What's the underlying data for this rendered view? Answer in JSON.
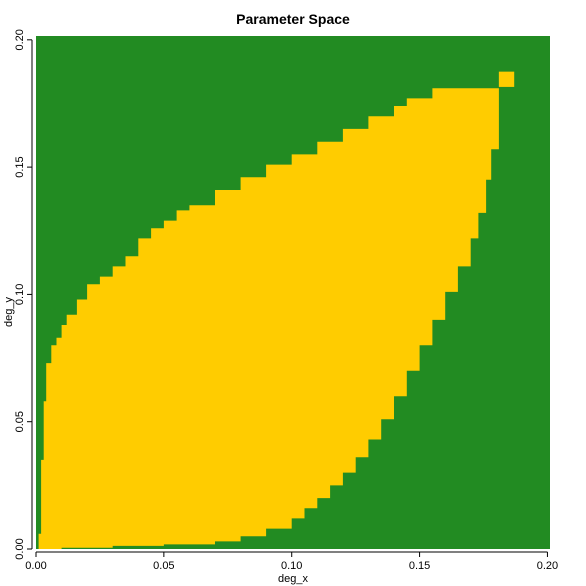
{
  "chart_data": {
    "type": "heatmap",
    "title": "Parameter Space",
    "xlabel": "deg_x",
    "ylabel": "deg_y",
    "xlim": [
      0.0,
      0.201
    ],
    "ylim": [
      0.0,
      0.2015
    ],
    "x_ticks": [
      0.0,
      0.05,
      0.1,
      0.15,
      0.2
    ],
    "y_ticks": [
      0.0,
      0.05,
      0.1,
      0.15,
      0.2
    ],
    "x_tick_labels": [
      "0.00",
      "0.05",
      "0.10",
      "0.15",
      "0.20"
    ],
    "y_tick_labels": [
      "0.00",
      "0.05",
      "0.10",
      "0.15",
      "0.20"
    ],
    "colors": {
      "background": "#228B22",
      "region": "#FFCC00"
    },
    "region": {
      "description_free": true,
      "upper_boundary": [
        [
          0.001,
          0.006
        ],
        [
          0.002,
          0.035
        ],
        [
          0.003,
          0.058
        ],
        [
          0.004,
          0.073
        ],
        [
          0.006,
          0.08
        ],
        [
          0.008,
          0.083
        ],
        [
          0.01,
          0.088
        ],
        [
          0.012,
          0.092
        ],
        [
          0.016,
          0.098
        ],
        [
          0.02,
          0.104
        ],
        [
          0.025,
          0.107
        ],
        [
          0.03,
          0.111
        ],
        [
          0.035,
          0.115
        ],
        [
          0.04,
          0.122
        ],
        [
          0.045,
          0.126
        ],
        [
          0.05,
          0.129
        ],
        [
          0.055,
          0.133
        ],
        [
          0.06,
          0.135
        ],
        [
          0.07,
          0.141
        ],
        [
          0.08,
          0.146
        ],
        [
          0.09,
          0.151
        ],
        [
          0.1,
          0.155
        ],
        [
          0.11,
          0.16
        ],
        [
          0.12,
          0.165
        ],
        [
          0.13,
          0.17
        ],
        [
          0.14,
          0.174
        ],
        [
          0.145,
          0.177
        ],
        [
          0.155,
          0.181
        ],
        [
          0.181,
          0.181
        ]
      ],
      "lower_boundary": [
        [
          0.001,
          0.0
        ],
        [
          0.01,
          0.0005
        ],
        [
          0.03,
          0.0012
        ],
        [
          0.05,
          0.0018
        ],
        [
          0.07,
          0.003
        ],
        [
          0.08,
          0.005
        ],
        [
          0.09,
          0.008
        ],
        [
          0.1,
          0.012
        ],
        [
          0.105,
          0.016
        ],
        [
          0.11,
          0.02
        ],
        [
          0.115,
          0.025
        ],
        [
          0.12,
          0.03
        ],
        [
          0.125,
          0.036
        ],
        [
          0.13,
          0.043
        ],
        [
          0.135,
          0.051
        ],
        [
          0.14,
          0.06
        ],
        [
          0.145,
          0.07
        ],
        [
          0.15,
          0.08
        ],
        [
          0.155,
          0.09
        ],
        [
          0.16,
          0.101
        ],
        [
          0.165,
          0.111
        ],
        [
          0.17,
          0.122
        ],
        [
          0.173,
          0.132
        ],
        [
          0.176,
          0.145
        ],
        [
          0.178,
          0.157
        ],
        [
          0.181,
          0.157
        ],
        [
          0.181,
          0.181
        ]
      ],
      "extra_cell": [
        0.181,
        0.1815,
        0.187,
        0.1875
      ]
    }
  }
}
